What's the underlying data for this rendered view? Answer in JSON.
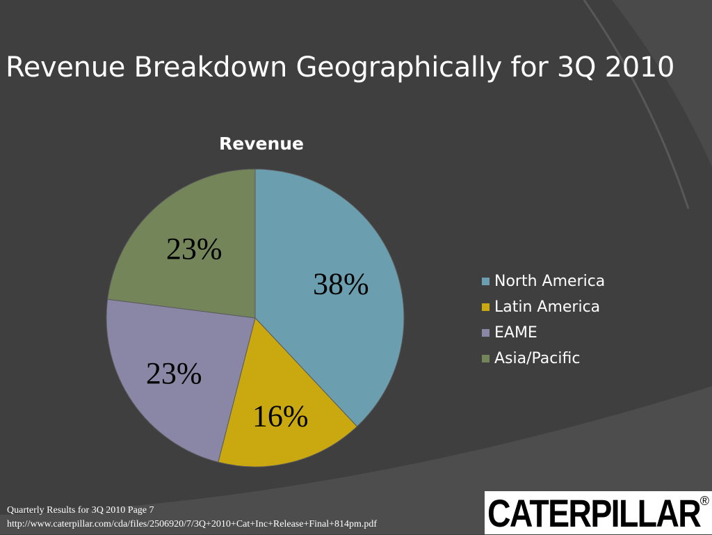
{
  "slide": {
    "title": "Revenue Breakdown Geographically for 3Q 2010",
    "footer_line1": "Quarterly Results for 3Q 2010 Page 7",
    "footer_line2": "http://www.caterpillar.com/cda/files/2506920/7/3Q+2010+Cat+Inc+Release+Final+814pm.pdf"
  },
  "logo": {
    "text": "CATERPILLAR",
    "registered": "®"
  },
  "chart_data": {
    "type": "pie",
    "title": "Revenue",
    "categories": [
      "North America",
      "Latin America",
      "EAME",
      "Asia/Pacific"
    ],
    "values": [
      38,
      16,
      23,
      23
    ],
    "labels": [
      "38%",
      "16%",
      "23%",
      "23%"
    ],
    "colors": [
      "#6b9fb0",
      "#c9a90f",
      "#8a86a6",
      "#74855a"
    ],
    "legend_position": "right"
  }
}
